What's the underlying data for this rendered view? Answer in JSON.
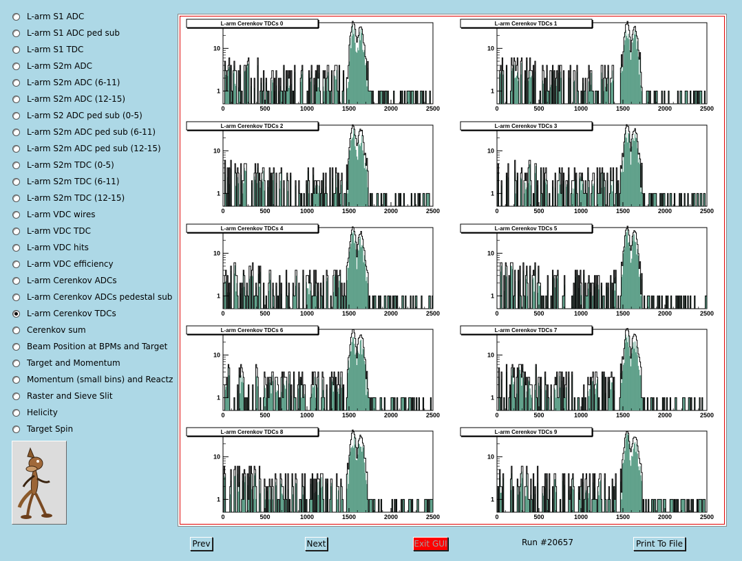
{
  "sidebar": {
    "items": [
      {
        "label": "L-arm S1 ADC",
        "checked": false
      },
      {
        "label": "L-arm S1 ADC ped sub",
        "checked": false
      },
      {
        "label": "L-arm S1 TDC",
        "checked": false
      },
      {
        "label": "L-arm S2m ADC",
        "checked": false
      },
      {
        "label": "L-arm S2m ADC (6-11)",
        "checked": false
      },
      {
        "label": "L-arm S2m ADC (12-15)",
        "checked": false
      },
      {
        "label": "L-arm S2 ADC ped sub (0-5)",
        "checked": false
      },
      {
        "label": "L-arm S2m ADC ped sub (6-11)",
        "checked": false
      },
      {
        "label": "L-arm S2m ADC ped sub (12-15)",
        "checked": false
      },
      {
        "label": "L-arm S2m TDC (0-5)",
        "checked": false
      },
      {
        "label": "L-arm S2m TDC (6-11)",
        "checked": false
      },
      {
        "label": "L-arm S2m TDC (12-15)",
        "checked": false
      },
      {
        "label": "L-arm VDC wires",
        "checked": false
      },
      {
        "label": "L-arm VDC TDC",
        "checked": false
      },
      {
        "label": "L-arm VDC hits",
        "checked": false
      },
      {
        "label": "L-arm VDC efficiency",
        "checked": false
      },
      {
        "label": "L-arm Cerenkov ADCs",
        "checked": false
      },
      {
        "label": "L-arm Cerenkov ADCs pedestal sub",
        "checked": false
      },
      {
        "label": "L-arm Cerenkov TDCs",
        "checked": true
      },
      {
        "label": "Cerenkov sum",
        "checked": false
      },
      {
        "label": "Beam Position at BPMs and Target",
        "checked": false
      },
      {
        "label": "Target and Momentum",
        "checked": false
      },
      {
        "label": "Momentum (small bins) and Reactz",
        "checked": false
      },
      {
        "label": "Raster and Sieve Slit",
        "checked": false
      },
      {
        "label": "Helicity",
        "checked": false
      },
      {
        "label": "Target Spin",
        "checked": false
      }
    ]
  },
  "footer": {
    "prev_label": "Prev",
    "next_label": "Next",
    "exit_label": "Exit GUI",
    "run_label": "Run #20657",
    "print_label": "Print To File"
  },
  "colors": {
    "background": "#add8e6",
    "canvas_border": "#e00000",
    "exit_button": "#ff0000",
    "histogram_line": "#000000",
    "histogram_fill": "#5fa08a"
  },
  "chart_data": [
    {
      "type": "histogram",
      "title": "L-arm Cerenkov TDCs 0",
      "xlim": [
        0,
        2500
      ],
      "xticks": [
        0,
        500,
        1000,
        1500,
        2000,
        2500
      ],
      "yscale": "log",
      "yticks": [
        1,
        10
      ],
      "peak_x": 1550,
      "peak_height": 40
    },
    {
      "type": "histogram",
      "title": "L-arm Cerenkov TDCs 1",
      "xlim": [
        0,
        2500
      ],
      "xticks": [
        0,
        500,
        1000,
        1500,
        2000,
        2500
      ],
      "yscale": "log",
      "yticks": [
        1,
        10
      ],
      "peak_x": 1550,
      "peak_height": 40
    },
    {
      "type": "histogram",
      "title": "L-arm Cerenkov TDCs 2",
      "xlim": [
        0,
        2500
      ],
      "xticks": [
        0,
        500,
        1000,
        1500,
        2000,
        2500
      ],
      "yscale": "log",
      "yticks": [
        1,
        10
      ],
      "peak_x": 1550,
      "peak_height": 40
    },
    {
      "type": "histogram",
      "title": "L-arm Cerenkov TDCs 3",
      "xlim": [
        0,
        2500
      ],
      "xticks": [
        0,
        500,
        1000,
        1500,
        2000,
        2500
      ],
      "yscale": "log",
      "yticks": [
        1,
        10
      ],
      "peak_x": 1550,
      "peak_height": 40
    },
    {
      "type": "histogram",
      "title": "L-arm Cerenkov TDCs 4",
      "xlim": [
        0,
        2500
      ],
      "xticks": [
        0,
        500,
        1000,
        1500,
        2000,
        2500
      ],
      "yscale": "log",
      "yticks": [
        1,
        10
      ],
      "peak_x": 1550,
      "peak_height": 40
    },
    {
      "type": "histogram",
      "title": "L-arm Cerenkov TDCs 5",
      "xlim": [
        0,
        2500
      ],
      "xticks": [
        0,
        500,
        1000,
        1500,
        2000,
        2500
      ],
      "yscale": "log",
      "yticks": [
        1,
        10
      ],
      "peak_x": 1550,
      "peak_height": 40
    },
    {
      "type": "histogram",
      "title": "L-arm Cerenkov TDCs 6",
      "xlim": [
        0,
        2500
      ],
      "xticks": [
        0,
        500,
        1000,
        1500,
        2000,
        2500
      ],
      "yscale": "log",
      "yticks": [
        1,
        10
      ],
      "peak_x": 1550,
      "peak_height": 40
    },
    {
      "type": "histogram",
      "title": "L-arm Cerenkov TDCs 7",
      "xlim": [
        0,
        2500
      ],
      "xticks": [
        0,
        500,
        1000,
        1500,
        2000,
        2500
      ],
      "yscale": "log",
      "yticks": [
        1,
        10
      ],
      "peak_x": 1550,
      "peak_height": 40
    },
    {
      "type": "histogram",
      "title": "L-arm Cerenkov TDCs 8",
      "xlim": [
        0,
        2500
      ],
      "xticks": [
        0,
        500,
        1000,
        1500,
        2000,
        2500
      ],
      "yscale": "log",
      "yticks": [
        1,
        10
      ],
      "peak_x": 1550,
      "peak_height": 40
    },
    {
      "type": "histogram",
      "title": "L-arm Cerenkov TDCs 9",
      "xlim": [
        0,
        2500
      ],
      "xticks": [
        0,
        500,
        1000,
        1500,
        2000,
        2500
      ],
      "yscale": "log",
      "yticks": [
        1,
        10
      ],
      "peak_x": 1550,
      "peak_height": 40
    }
  ]
}
